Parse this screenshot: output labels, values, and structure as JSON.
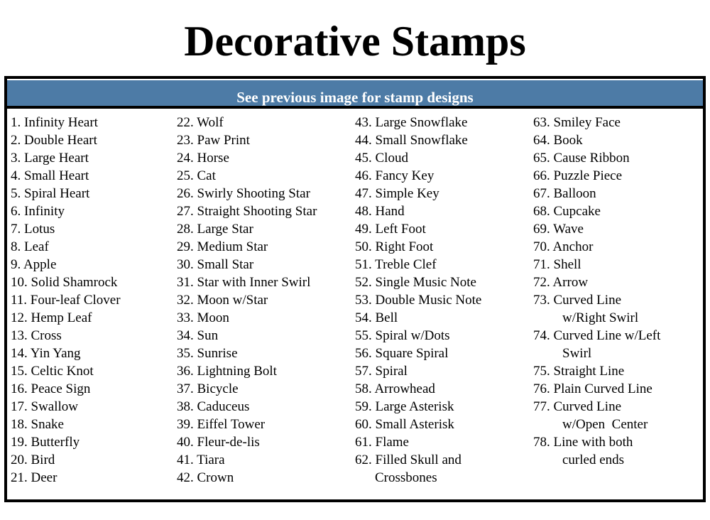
{
  "title": "Decorative Stamps",
  "header": "See previous image for stamp designs",
  "colors": {
    "header_bg": "#4d7ba6",
    "header_text": "#ffffff",
    "border": "#000000"
  },
  "columns": [
    [
      [
        "1. Infinity Heart"
      ],
      [
        "2. Double Heart"
      ],
      [
        "3. Large Heart"
      ],
      [
        "4. Small Heart"
      ],
      [
        "5. Spiral Heart"
      ],
      [
        "6. Infinity"
      ],
      [
        "7. Lotus"
      ],
      [
        "8. Leaf"
      ],
      [
        "9. Apple"
      ],
      [
        "10. Solid Shamrock"
      ],
      [
        "11. Four-leaf Clover"
      ],
      [
        "12. Hemp Leaf"
      ],
      [
        "13. Cross"
      ],
      [
        "14. Yin Yang"
      ],
      [
        "15. Celtic Knot"
      ],
      [
        "16. Peace Sign"
      ],
      [
        "17. Swallow"
      ],
      [
        "18. Snake"
      ],
      [
        "19. Butterfly"
      ],
      [
        "20. Bird"
      ],
      [
        "21. Deer"
      ]
    ],
    [
      [
        "22. Wolf"
      ],
      [
        "23. Paw Print"
      ],
      [
        "24. Horse"
      ],
      [
        "25. Cat"
      ],
      [
        "26. Swirly Shooting Star"
      ],
      [
        "27. Straight Shooting Star"
      ],
      [
        "28. Large Star"
      ],
      [
        "29. Medium Star"
      ],
      [
        "30. Small Star"
      ],
      [
        "31. Star with Inner Swirl"
      ],
      [
        "32. Moon w/Star"
      ],
      [
        "33. Moon"
      ],
      [
        "34. Sun"
      ],
      [
        "35. Sunrise"
      ],
      [
        "36. Lightning Bolt"
      ],
      [
        "37. Bicycle"
      ],
      [
        "38. Caduceus"
      ],
      [
        "39. Eiffel Tower"
      ],
      [
        "40. Fleur-de-lis"
      ],
      [
        "41. Tiara"
      ],
      [
        "42. Crown"
      ]
    ],
    [
      [
        "43. Large Snowflake"
      ],
      [
        "44. Small Snowflake"
      ],
      [
        "45. Cloud"
      ],
      [
        "46. Fancy Key"
      ],
      [
        "47. Simple Key"
      ],
      [
        "48. Hand"
      ],
      [
        "49. Left Foot"
      ],
      [
        "50. Right Foot"
      ],
      [
        "51. Treble Clef"
      ],
      [
        "52. Single Music Note"
      ],
      [
        "53. Double Music Note"
      ],
      [
        "54. Bell"
      ],
      [
        "55. Spiral w/Dots"
      ],
      [
        "56. Square Spiral"
      ],
      [
        "57. Spiral"
      ],
      [
        "58. Arrowhead"
      ],
      [
        "59. Large Asterisk"
      ],
      [
        "60. Small Asterisk"
      ],
      [
        "61. Flame"
      ],
      [
        "62. Filled Skull and",
        "Crossbones"
      ]
    ],
    [
      [
        "63. Smiley Face"
      ],
      [
        "64. Book"
      ],
      [
        "65. Cause Ribbon"
      ],
      [
        "66. Puzzle Piece"
      ],
      [
        "67. Balloon"
      ],
      [
        "68. Cupcake"
      ],
      [
        "69. Wave"
      ],
      [
        "70. Anchor"
      ],
      [
        "71. Shell"
      ],
      [
        "72. Arrow"
      ],
      [
        "73. Curved Line",
        "w/Right Swirl"
      ],
      [
        "74. Curved Line w/Left",
        "Swirl"
      ],
      [
        "75. Straight Line"
      ],
      [
        "76. Plain Curved Line"
      ],
      [
        "77. Curved Line",
        "w/Open  Center"
      ],
      [
        "78. Line with both",
        "curled ends"
      ]
    ]
  ]
}
